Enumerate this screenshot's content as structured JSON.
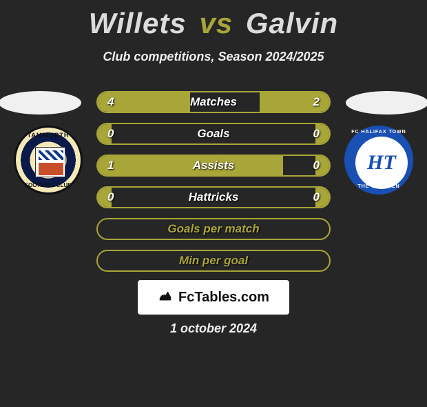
{
  "title": {
    "player1": "Willets",
    "vs": "vs",
    "player2": "Galvin"
  },
  "subtitle": "Club competitions, Season 2024/2025",
  "colors": {
    "accent": "#a8a539",
    "background": "#262626",
    "text": "#ffffff"
  },
  "clubs": {
    "left": {
      "name": "TAMWORTH",
      "sub": "FOOTBALL CLUB"
    },
    "right": {
      "name": "FC HALIFAX TOWN",
      "sub": "THE SHAYMEN",
      "monogram": "HT"
    }
  },
  "stats": [
    {
      "label": "Matches",
      "left_val": "4",
      "right_val": "2",
      "left_pct": 40,
      "right_pct": 30
    },
    {
      "label": "Goals",
      "left_val": "0",
      "right_val": "0",
      "left_pct": 6,
      "right_pct": 6
    },
    {
      "label": "Assists",
      "left_val": "1",
      "right_val": "0",
      "left_pct": 80,
      "right_pct": 6
    },
    {
      "label": "Hattricks",
      "left_val": "0",
      "right_val": "0",
      "left_pct": 6,
      "right_pct": 6
    },
    {
      "label": "Goals per match",
      "label_only": true
    },
    {
      "label": "Min per goal",
      "label_only": true
    }
  ],
  "footer": {
    "site": "FcTables.com",
    "date": "1 october 2024"
  }
}
